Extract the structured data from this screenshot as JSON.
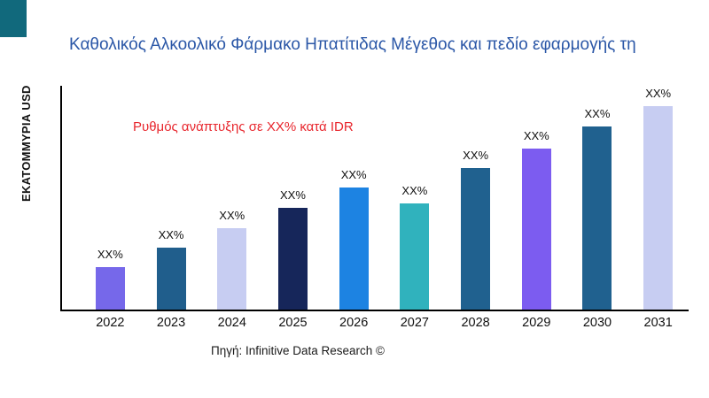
{
  "header": {
    "title": "Καθολικός Αλκοολικό Φάρμακο Ηπατίτιδας Μέγεθος και πεδίο εφαρμογής τη"
  },
  "footer": {
    "source": "Πηγή: Infinitive Data Research ©"
  },
  "accent": {
    "corner_color": "#11697c"
  },
  "chart_data": {
    "type": "bar",
    "title": "Καθολικός Αλκοολικό Φάρμακο Ηπατίτιδας Μέγεθος και πεδίο εφαρμογής τη",
    "xlabel": "",
    "ylabel": "ΕΚΑΤΟΜΜΥΡΙΑ USD",
    "categories": [
      "2022",
      "2023",
      "2024",
      "2025",
      "2026",
      "2027",
      "2028",
      "2029",
      "2030",
      "2031"
    ],
    "values": [
      48,
      70,
      92,
      115,
      138,
      120,
      160,
      182,
      207,
      230
    ],
    "value_labels": [
      "XX%",
      "XX%",
      "XX%",
      "XX%",
      "XX%",
      "XX%",
      "XX%",
      "XX%",
      "XX%",
      "XX%"
    ],
    "bar_colors": [
      "#7668ea",
      "#205e8c",
      "#c7cdf2",
      "#16265a",
      "#1d83e2",
      "#30b2bd",
      "#20618f",
      "#7c5cf0",
      "#20618f",
      "#c7cdf2"
    ],
    "annotation": "Ρυθμός ανάπτυξης σε XX% κατά IDR",
    "annotation_color": "#e8262d",
    "ylim": [
      0,
      253
    ],
    "grid": false,
    "legend": false
  }
}
